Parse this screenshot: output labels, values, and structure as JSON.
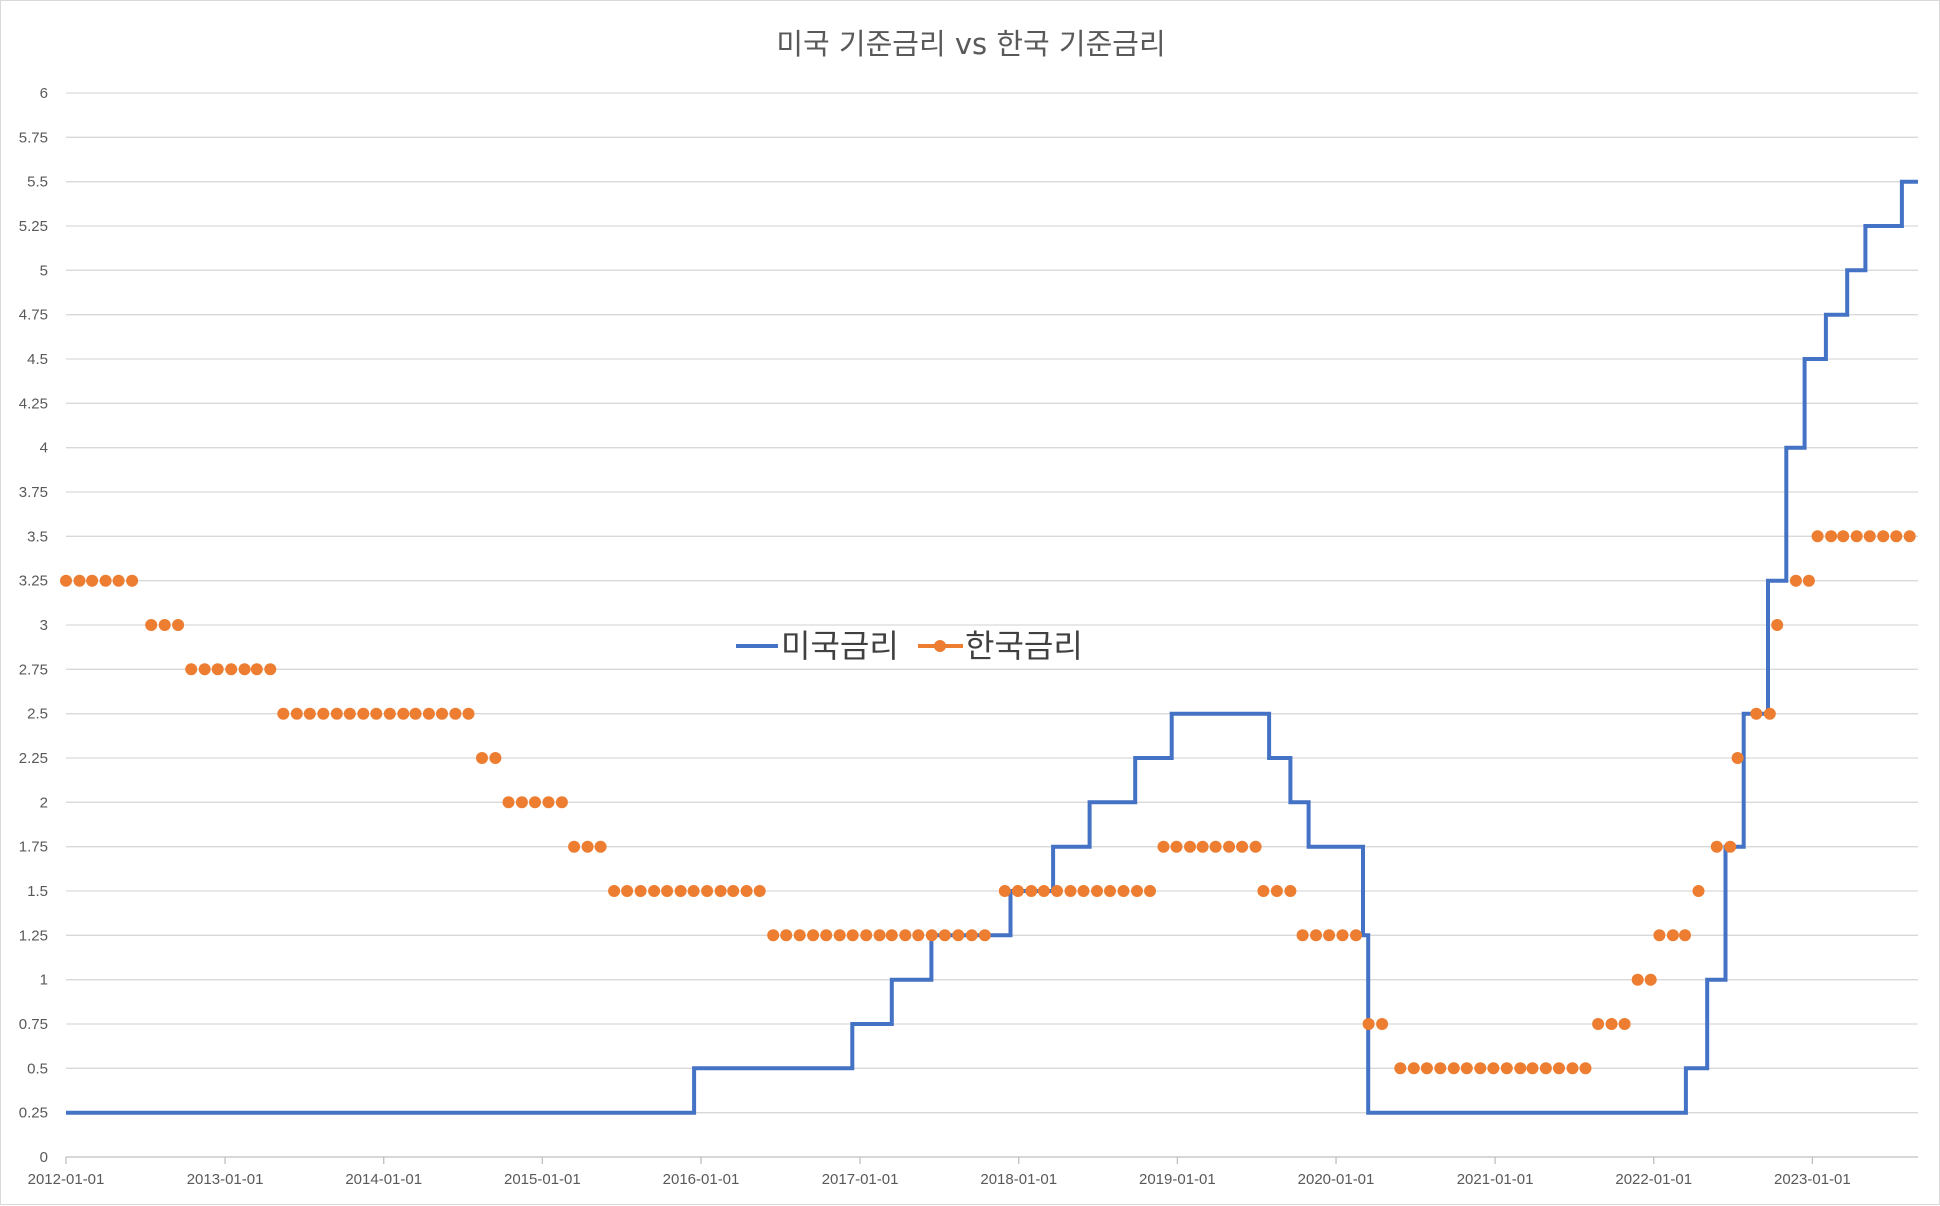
{
  "chart_data": {
    "type": "line",
    "title": "미국 기준금리 vs 한국 기준금리",
    "xlabel": "",
    "ylabel": "",
    "x_range": [
      "2012-01-01",
      "2023-09-01"
    ],
    "x_ticks": [
      "2012-01-01",
      "2013-01-01",
      "2014-01-01",
      "2015-01-01",
      "2016-01-01",
      "2017-01-01",
      "2018-01-01",
      "2019-01-01",
      "2020-01-01",
      "2021-01-01",
      "2022-01-01",
      "2023-01-01"
    ],
    "y_ticks": [
      "0",
      "0.25",
      "0.5",
      "0.75",
      "1",
      "1.25",
      "1.5",
      "1.75",
      "2",
      "2.25",
      "2.5",
      "2.75",
      "3",
      "3.25",
      "3.5",
      "3.75",
      "4",
      "4.25",
      "4.5",
      "4.75",
      "5",
      "5.25",
      "5.5",
      "5.75",
      "6"
    ],
    "ylim": [
      0,
      6
    ],
    "grid": "horizontal",
    "legend_position": "center",
    "series": [
      {
        "name": "미국금리",
        "style": "step-line",
        "color": "#4472C4",
        "points": [
          [
            "2012-01-01",
            0.25
          ],
          [
            "2015-12-16",
            0.5
          ],
          [
            "2016-12-14",
            0.75
          ],
          [
            "2017-03-15",
            1.0
          ],
          [
            "2017-06-14",
            1.25
          ],
          [
            "2017-12-13",
            1.5
          ],
          [
            "2018-03-21",
            1.75
          ],
          [
            "2018-06-13",
            2.0
          ],
          [
            "2018-09-26",
            2.25
          ],
          [
            "2018-12-19",
            2.5
          ],
          [
            "2019-07-31",
            2.25
          ],
          [
            "2019-09-18",
            2.0
          ],
          [
            "2019-10-30",
            1.75
          ],
          [
            "2020-03-03",
            1.25
          ],
          [
            "2020-03-15",
            0.25
          ],
          [
            "2022-03-16",
            0.5
          ],
          [
            "2022-05-04",
            1.0
          ],
          [
            "2022-06-15",
            1.75
          ],
          [
            "2022-07-27",
            2.5
          ],
          [
            "2022-09-21",
            3.25
          ],
          [
            "2022-11-02",
            4.0
          ],
          [
            "2022-12-14",
            4.5
          ],
          [
            "2023-02-01",
            4.75
          ],
          [
            "2023-03-22",
            5.0
          ],
          [
            "2023-05-03",
            5.25
          ],
          [
            "2023-07-26",
            5.5
          ],
          [
            "2023-09-01",
            5.5
          ]
        ]
      },
      {
        "name": "한국금리",
        "style": "markers",
        "color": "#ED7D31",
        "points": [
          [
            "2012-01-01",
            3.25
          ],
          [
            "2012-02-01",
            3.25
          ],
          [
            "2012-03-01",
            3.25
          ],
          [
            "2012-04-01",
            3.25
          ],
          [
            "2012-05-01",
            3.25
          ],
          [
            "2012-06-01",
            3.25
          ],
          [
            "2012-07-15",
            3.0
          ],
          [
            "2012-08-15",
            3.0
          ],
          [
            "2012-09-15",
            3.0
          ],
          [
            "2012-10-15",
            2.75
          ],
          [
            "2012-11-15",
            2.75
          ],
          [
            "2012-12-15",
            2.75
          ],
          [
            "2013-01-15",
            2.75
          ],
          [
            "2013-02-15",
            2.75
          ],
          [
            "2013-03-15",
            2.75
          ],
          [
            "2013-04-15",
            2.75
          ],
          [
            "2013-05-15",
            2.5
          ],
          [
            "2013-06-15",
            2.5
          ],
          [
            "2013-07-15",
            2.5
          ],
          [
            "2013-08-15",
            2.5
          ],
          [
            "2013-09-15",
            2.5
          ],
          [
            "2013-10-15",
            2.5
          ],
          [
            "2013-11-15",
            2.5
          ],
          [
            "2013-12-15",
            2.5
          ],
          [
            "2014-01-15",
            2.5
          ],
          [
            "2014-02-15",
            2.5
          ],
          [
            "2014-03-15",
            2.5
          ],
          [
            "2014-04-15",
            2.5
          ],
          [
            "2014-05-15",
            2.5
          ],
          [
            "2014-06-15",
            2.5
          ],
          [
            "2014-07-15",
            2.5
          ],
          [
            "2014-08-15",
            2.25
          ],
          [
            "2014-09-15",
            2.25
          ],
          [
            "2014-10-15",
            2.0
          ],
          [
            "2014-11-15",
            2.0
          ],
          [
            "2014-12-15",
            2.0
          ],
          [
            "2015-01-15",
            2.0
          ],
          [
            "2015-02-15",
            2.0
          ],
          [
            "2015-03-15",
            1.75
          ],
          [
            "2015-04-15",
            1.75
          ],
          [
            "2015-05-15",
            1.75
          ],
          [
            "2015-06-15",
            1.5
          ],
          [
            "2015-07-15",
            1.5
          ],
          [
            "2015-08-15",
            1.5
          ],
          [
            "2015-09-15",
            1.5
          ],
          [
            "2015-10-15",
            1.5
          ],
          [
            "2015-11-15",
            1.5
          ],
          [
            "2015-12-15",
            1.5
          ],
          [
            "2016-01-15",
            1.5
          ],
          [
            "2016-02-15",
            1.5
          ],
          [
            "2016-03-15",
            1.5
          ],
          [
            "2016-04-15",
            1.5
          ],
          [
            "2016-05-15",
            1.5
          ],
          [
            "2016-06-15",
            1.25
          ],
          [
            "2016-07-15",
            1.25
          ],
          [
            "2016-08-15",
            1.25
          ],
          [
            "2016-09-15",
            1.25
          ],
          [
            "2016-10-15",
            1.25
          ],
          [
            "2016-11-15",
            1.25
          ],
          [
            "2016-12-15",
            1.25
          ],
          [
            "2017-01-15",
            1.25
          ],
          [
            "2017-02-15",
            1.25
          ],
          [
            "2017-03-15",
            1.25
          ],
          [
            "2017-04-15",
            1.25
          ],
          [
            "2017-05-15",
            1.25
          ],
          [
            "2017-06-15",
            1.25
          ],
          [
            "2017-07-15",
            1.25
          ],
          [
            "2017-08-15",
            1.25
          ],
          [
            "2017-09-15",
            1.25
          ],
          [
            "2017-10-15",
            1.25
          ],
          [
            "2017-11-30",
            1.5
          ],
          [
            "2017-12-30",
            1.5
          ],
          [
            "2018-01-30",
            1.5
          ],
          [
            "2018-02-28",
            1.5
          ],
          [
            "2018-03-30",
            1.5
          ],
          [
            "2018-04-30",
            1.5
          ],
          [
            "2018-05-30",
            1.5
          ],
          [
            "2018-06-30",
            1.5
          ],
          [
            "2018-07-30",
            1.5
          ],
          [
            "2018-08-30",
            1.5
          ],
          [
            "2018-09-30",
            1.5
          ],
          [
            "2018-10-30",
            1.5
          ],
          [
            "2018-11-30",
            1.75
          ],
          [
            "2018-12-30",
            1.75
          ],
          [
            "2019-01-30",
            1.75
          ],
          [
            "2019-02-28",
            1.75
          ],
          [
            "2019-03-30",
            1.75
          ],
          [
            "2019-04-30",
            1.75
          ],
          [
            "2019-05-30",
            1.75
          ],
          [
            "2019-06-30",
            1.75
          ],
          [
            "2019-07-18",
            1.5
          ],
          [
            "2019-08-18",
            1.5
          ],
          [
            "2019-09-18",
            1.5
          ],
          [
            "2019-10-16",
            1.25
          ],
          [
            "2019-11-16",
            1.25
          ],
          [
            "2019-12-16",
            1.25
          ],
          [
            "2020-01-16",
            1.25
          ],
          [
            "2020-02-16",
            1.25
          ],
          [
            "2020-03-16",
            0.75
          ],
          [
            "2020-04-16",
            0.75
          ],
          [
            "2020-05-28",
            0.5
          ],
          [
            "2020-06-28",
            0.5
          ],
          [
            "2020-07-28",
            0.5
          ],
          [
            "2020-08-28",
            0.5
          ],
          [
            "2020-09-28",
            0.5
          ],
          [
            "2020-10-28",
            0.5
          ],
          [
            "2020-11-28",
            0.5
          ],
          [
            "2020-12-28",
            0.5
          ],
          [
            "2021-01-28",
            0.5
          ],
          [
            "2021-02-28",
            0.5
          ],
          [
            "2021-03-28",
            0.5
          ],
          [
            "2021-04-28",
            0.5
          ],
          [
            "2021-05-28",
            0.5
          ],
          [
            "2021-06-28",
            0.5
          ],
          [
            "2021-07-28",
            0.5
          ],
          [
            "2021-08-26",
            0.75
          ],
          [
            "2021-09-26",
            0.75
          ],
          [
            "2021-10-26",
            0.75
          ],
          [
            "2021-11-25",
            1.0
          ],
          [
            "2021-12-25",
            1.0
          ],
          [
            "2022-01-14",
            1.25
          ],
          [
            "2022-02-14",
            1.25
          ],
          [
            "2022-03-14",
            1.25
          ],
          [
            "2022-04-14",
            1.5
          ],
          [
            "2022-05-26",
            1.75
          ],
          [
            "2022-06-26",
            1.75
          ],
          [
            "2022-07-13",
            2.25
          ],
          [
            "2022-08-25",
            2.5
          ],
          [
            "2022-09-25",
            2.5
          ],
          [
            "2022-10-12",
            3.0
          ],
          [
            "2022-11-24",
            3.25
          ],
          [
            "2022-12-24",
            3.25
          ],
          [
            "2023-01-13",
            3.5
          ],
          [
            "2023-02-13",
            3.5
          ],
          [
            "2023-03-13",
            3.5
          ],
          [
            "2023-04-13",
            3.5
          ],
          [
            "2023-05-13",
            3.5
          ],
          [
            "2023-06-13",
            3.5
          ],
          [
            "2023-07-13",
            3.5
          ],
          [
            "2023-08-13",
            3.5
          ]
        ]
      }
    ]
  }
}
